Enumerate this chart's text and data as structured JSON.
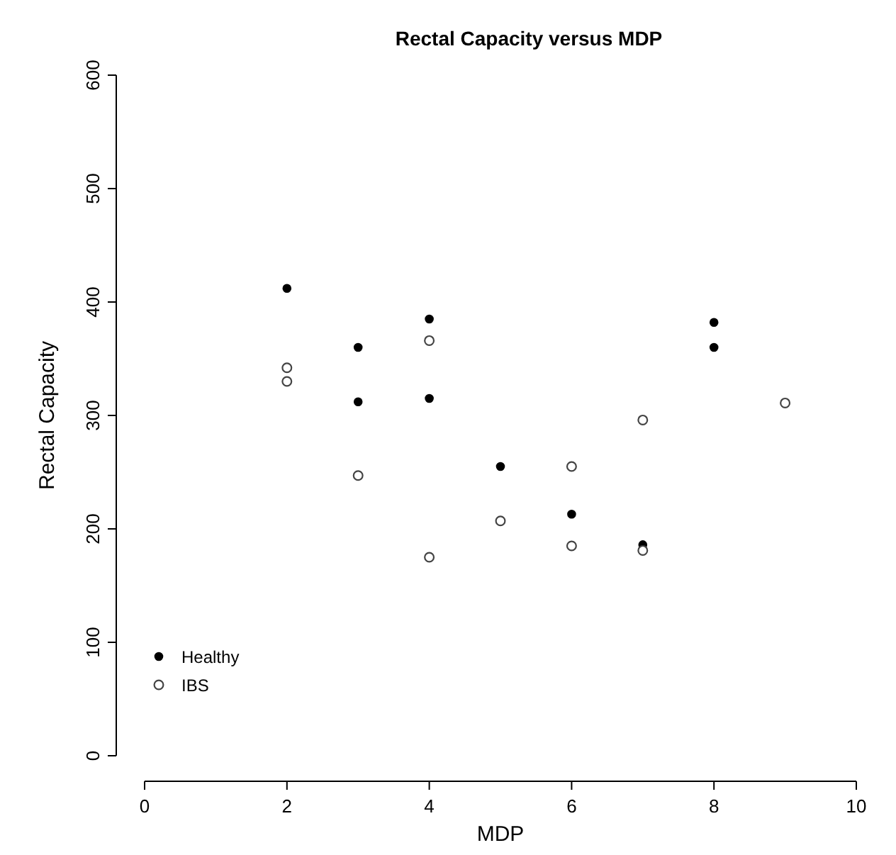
{
  "chart_data": {
    "type": "scatter",
    "title": "Rectal Capacity versus MDP",
    "xlabel": "MDP",
    "ylabel": "Rectal Capacity",
    "xlim": [
      0,
      10
    ],
    "xticks": [
      0,
      2,
      4,
      6,
      8,
      10
    ],
    "ylim": [
      0,
      600
    ],
    "yticks": [
      0,
      100,
      200,
      300,
      400,
      500,
      600
    ],
    "marker": "circle",
    "grid": false,
    "legend": "bottom left",
    "series": [
      {
        "name": "Healthy",
        "color": "#000000",
        "x": [
          2,
          3,
          3,
          4,
          4,
          5,
          6,
          7,
          8,
          8
        ],
        "values": [
          412,
          360,
          312,
          385,
          315,
          255,
          213,
          186,
          382,
          360
        ]
      },
      {
        "name": "IBS",
        "color": "#444444",
        "x": [
          2,
          2,
          3,
          4,
          4,
          5,
          6,
          6,
          7,
          7,
          9
        ],
        "values": [
          342,
          330,
          247,
          366,
          175,
          207,
          255,
          185,
          296,
          181,
          311
        ]
      }
    ]
  }
}
